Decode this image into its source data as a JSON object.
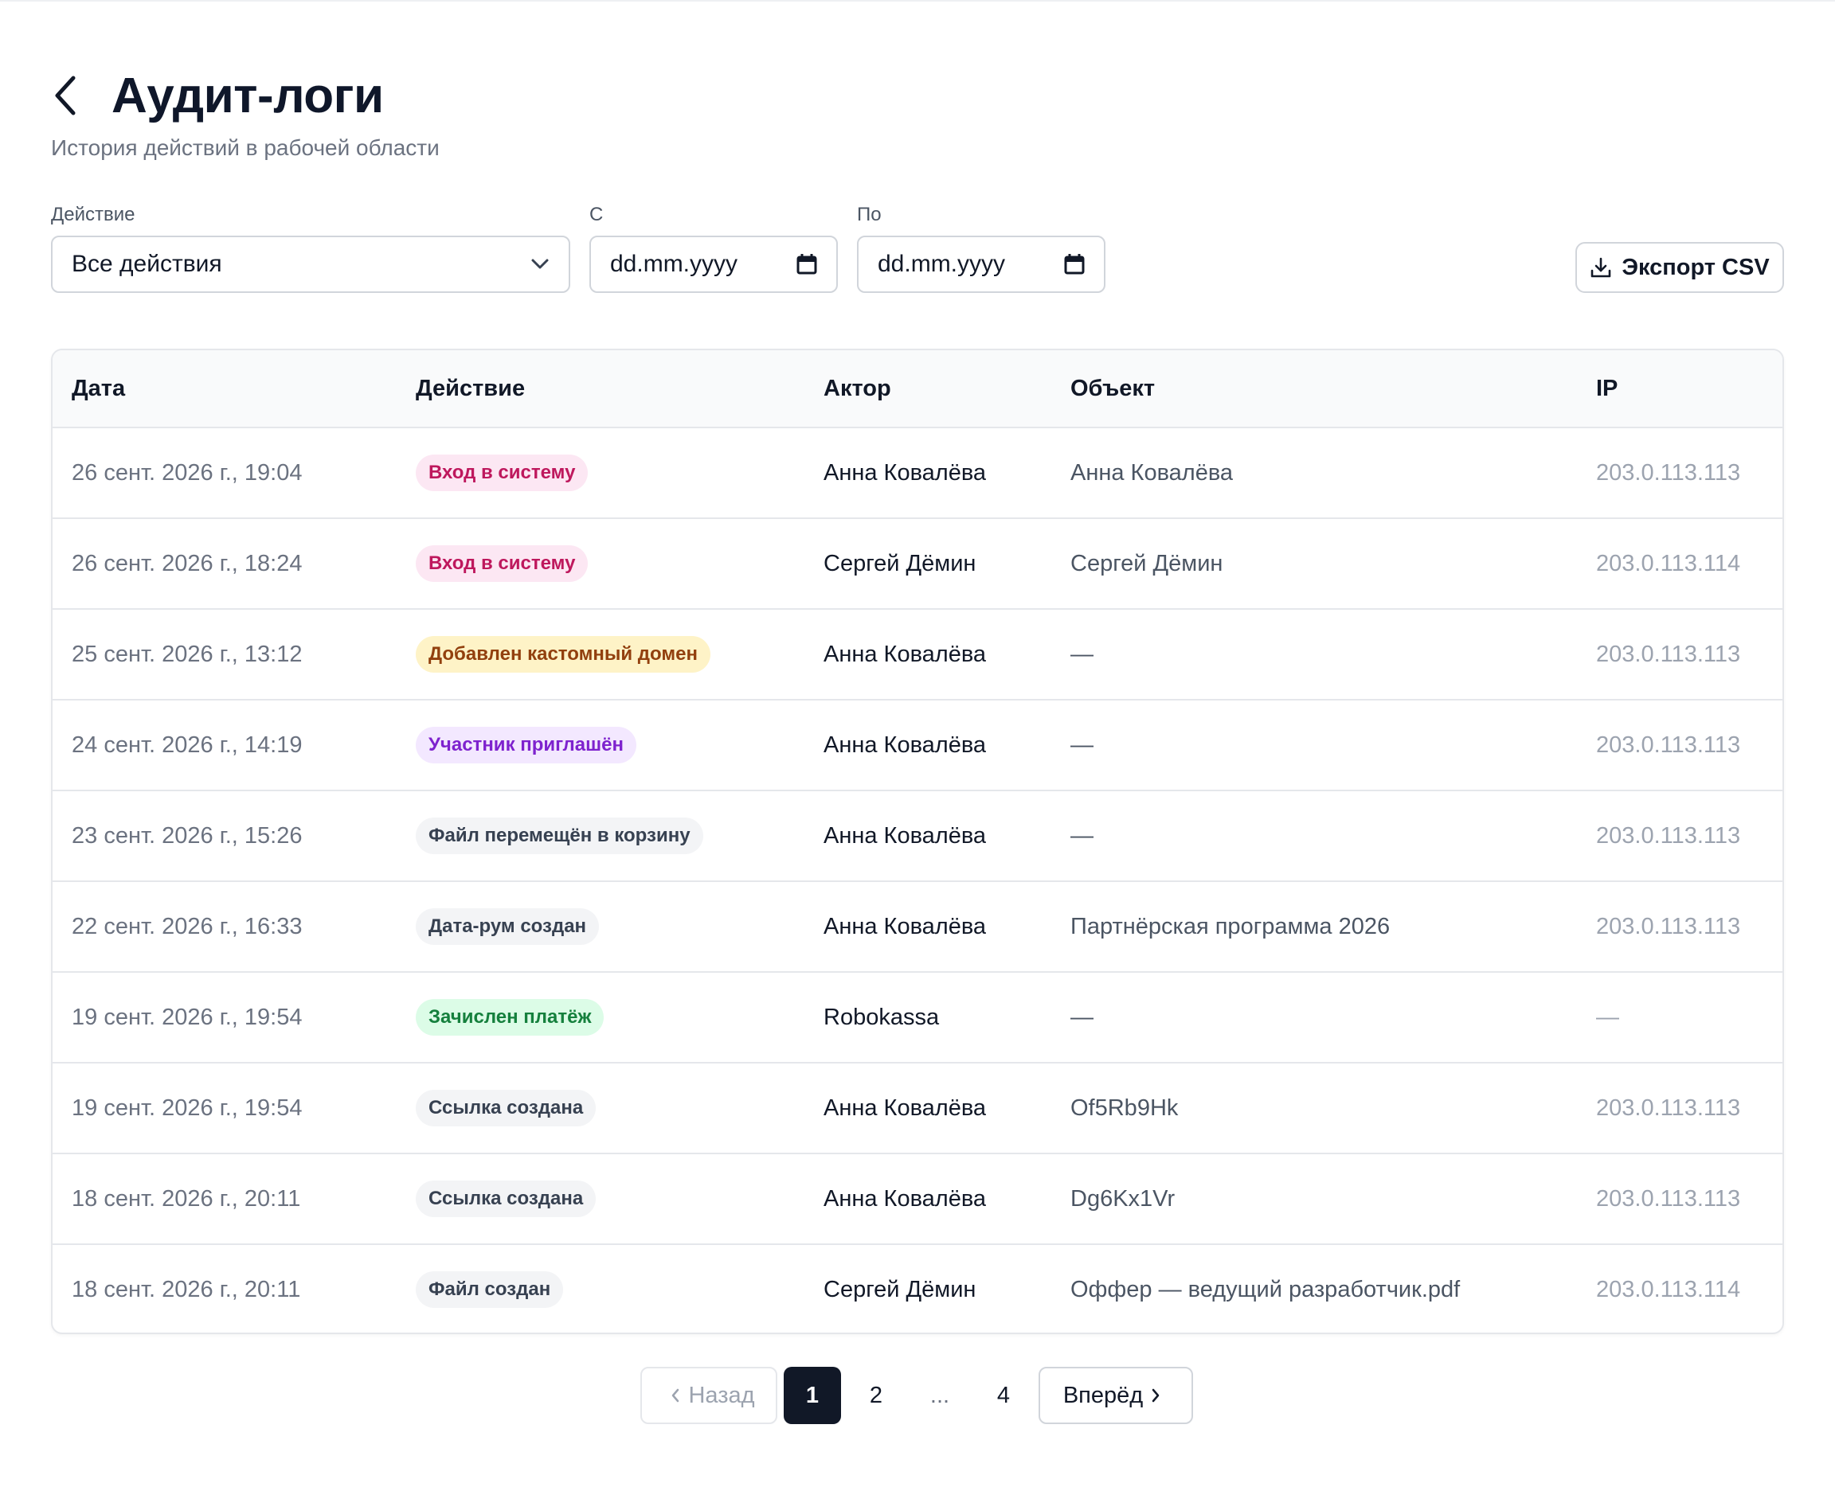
{
  "header": {
    "title": "Аудит-логи",
    "subtitle": "История действий в рабочей области"
  },
  "filters": {
    "action_label": "Действие",
    "action_value": "Все действия",
    "from_label": "С",
    "from_placeholder": "dd.mm.yyyy",
    "to_label": "По",
    "to_placeholder": "dd.mm.yyyy"
  },
  "export_label": "Экспорт CSV",
  "table": {
    "columns": [
      "Дата",
      "Действие",
      "Актор",
      "Объект",
      "IP"
    ],
    "rows": [
      {
        "date": "26 сент. 2026 г., 19:04",
        "action": "Вход в систему",
        "badge": "pink",
        "actor": "Анна Ковалёва",
        "object": "Анна Ковалёва",
        "ip": "203.0.113.113"
      },
      {
        "date": "26 сент. 2026 г., 18:24",
        "action": "Вход в систему",
        "badge": "pink",
        "actor": "Сергей Дёмин",
        "object": "Сергей Дёмин",
        "ip": "203.0.113.114"
      },
      {
        "date": "25 сент. 2026 г., 13:12",
        "action": "Добавлен кастомный домен",
        "badge": "yellow",
        "actor": "Анна Ковалёва",
        "object": "—",
        "ip": "203.0.113.113"
      },
      {
        "date": "24 сент. 2026 г., 14:19",
        "action": "Участник приглашён",
        "badge": "purple",
        "actor": "Анна Ковалёва",
        "object": "—",
        "ip": "203.0.113.113"
      },
      {
        "date": "23 сент. 2026 г., 15:26",
        "action": "Файл перемещён в корзину",
        "badge": "gray",
        "actor": "Анна Ковалёва",
        "object": "—",
        "ip": "203.0.113.113"
      },
      {
        "date": "22 сент. 2026 г., 16:33",
        "action": "Дата-рум создан",
        "badge": "gray",
        "actor": "Анна Ковалёва",
        "object": "Партнёрская программа 2026",
        "ip": "203.0.113.113"
      },
      {
        "date": "19 сент. 2026 г., 19:54",
        "action": "Зачислен платёж",
        "badge": "green",
        "actor": "Robokassa",
        "object": "—",
        "ip": "—"
      },
      {
        "date": "19 сент. 2026 г., 19:54",
        "action": "Ссылка создана",
        "badge": "gray",
        "actor": "Анна Ковалёва",
        "object": "Of5Rb9Hk",
        "ip": "203.0.113.113"
      },
      {
        "date": "18 сент. 2026 г., 20:11",
        "action": "Ссылка создана",
        "badge": "gray",
        "actor": "Анна Ковалёва",
        "object": "Dg6Kx1Vr",
        "ip": "203.0.113.113"
      },
      {
        "date": "18 сент. 2026 г., 20:11",
        "action": "Файл создан",
        "badge": "gray",
        "actor": "Сергей Дёмин",
        "object": "Оффер — ведущий разработчик.pdf",
        "ip": "203.0.113.114"
      }
    ]
  },
  "pagination": {
    "prev_label": "Назад",
    "pages": [
      "1",
      "2",
      "...",
      "4"
    ],
    "current": "1",
    "next_label": "Вперёд"
  },
  "colors": {
    "badge_pink": "#fce7f3",
    "badge_yellow": "#fef3c7",
    "badge_purple": "#f3e8ff",
    "badge_gray": "#f3f4f6",
    "badge_green": "#dcfce7",
    "active_page": "#111827"
  },
  "icons": {
    "back": "chevron-left-icon",
    "dropdown": "chevron-down-icon",
    "calendar": "calendar-icon",
    "export": "download-icon"
  }
}
